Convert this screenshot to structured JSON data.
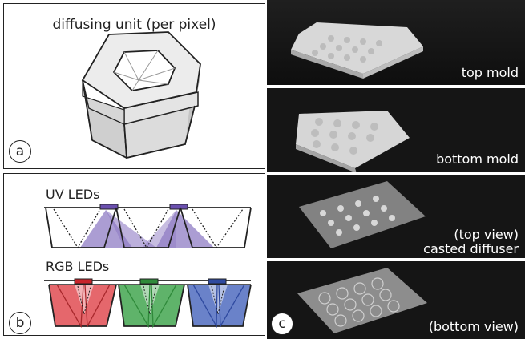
{
  "panel_a": {
    "title": "diffusing unit (per pixel)",
    "label": "a"
  },
  "panel_b": {
    "uv_label": "UV LEDs",
    "rgb_label": "RGB LEDs",
    "label": "b",
    "colors": {
      "uv": "#8f7cc4",
      "red": "#e5676c",
      "green": "#5fb36a",
      "blue": "#6a82c9"
    }
  },
  "panel_c": {
    "label": "c",
    "photos": [
      {
        "caption": "top mold"
      },
      {
        "caption": "bottom mold"
      },
      {
        "caption_line1": "(top view)",
        "caption_line2": "casted diffuser"
      },
      {
        "caption": "(bottom view)"
      }
    ]
  }
}
